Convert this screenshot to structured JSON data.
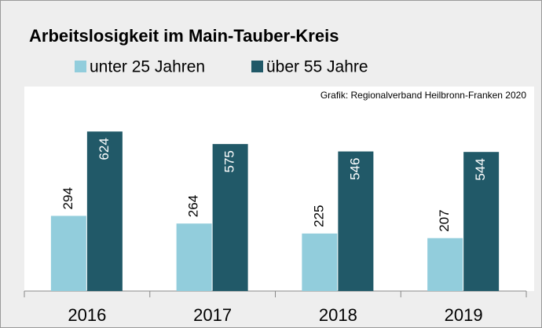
{
  "chart_data": {
    "type": "bar",
    "title": "Arbeitslosigkeit im Main-Tauber-Kreis",
    "source": "Grafik: Regionalverband Heilbronn-Franken 2020",
    "categories": [
      "2016",
      "2017",
      "2018",
      "2019"
    ],
    "series": [
      {
        "name": "unter 25 Jahren",
        "color": "#92cddc",
        "values": [
          294,
          264,
          225,
          207
        ]
      },
      {
        "name": "über 55 Jahre",
        "color": "#215968",
        "values": [
          624,
          575,
          546,
          544
        ]
      }
    ],
    "ylim": [
      0,
      800
    ]
  }
}
